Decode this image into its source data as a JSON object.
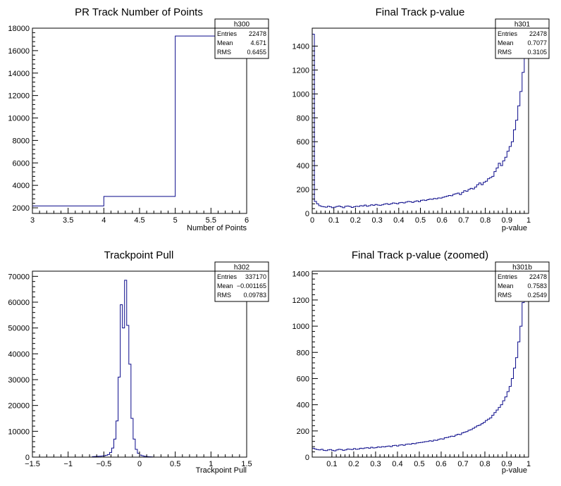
{
  "chart_data": [
    {
      "type": "histogram",
      "title": "PR Track Number of Points",
      "xlabel": "Number of Points",
      "ylabel": "",
      "xlim": [
        3,
        6
      ],
      "ylim": [
        1500,
        18000
      ],
      "x_ticks": [
        3,
        3.5,
        4,
        4.5,
        5,
        5.5,
        6
      ],
      "x_tick_labels": [
        "3",
        "3.5",
        "4",
        "4.5",
        "5",
        "5.5",
        "6"
      ],
      "y_ticks": [
        2000,
        4000,
        6000,
        8000,
        10000,
        12000,
        14000,
        16000,
        18000
      ],
      "y_tick_labels": [
        "2000",
        "4000",
        "6000",
        "8000",
        "10000",
        "12000",
        "14000",
        "16000",
        "18000"
      ],
      "bin_edges": [
        3,
        4,
        5,
        6
      ],
      "values": [
        2170,
        3010,
        17300
      ],
      "stats": {
        "name": "h300",
        "rows": [
          {
            "label": "Entries",
            "value": "22478"
          },
          {
            "label": "Mean",
            "value": "4.671"
          },
          {
            "label": "RMS",
            "value": "0.6455"
          }
        ]
      }
    },
    {
      "type": "histogram",
      "title": "Final Track p-value",
      "xlabel": "p-value",
      "ylabel": "",
      "xlim": [
        0,
        1
      ],
      "ylim": [
        0,
        1550
      ],
      "x_ticks": [
        0,
        0.1,
        0.2,
        0.3,
        0.4,
        0.5,
        0.6,
        0.7,
        0.8,
        0.9,
        1
      ],
      "x_tick_labels": [
        "0",
        "0.1",
        "0.2",
        "0.3",
        "0.4",
        "0.5",
        "0.6",
        "0.7",
        "0.8",
        "0.9",
        "1"
      ],
      "y_ticks": [
        0,
        200,
        400,
        600,
        800,
        1000,
        1200,
        1400
      ],
      "y_tick_labels": [
        "0",
        "200",
        "400",
        "600",
        "800",
        "1000",
        "1200",
        "1400"
      ],
      "bin_edges_range": [
        0,
        1
      ],
      "values": [
        1500,
        100,
        80,
        65,
        58,
        55,
        52,
        60,
        55,
        48,
        52,
        58,
        62,
        55,
        48,
        60,
        62,
        58,
        50,
        55,
        60,
        58,
        65,
        62,
        70,
        60,
        65,
        72,
        68,
        75,
        70,
        68,
        72,
        78,
        82,
        75,
        80,
        88,
        85,
        80,
        90,
        92,
        88,
        95,
        100,
        98,
        92,
        100,
        105,
        98,
        110,
        112,
        108,
        115,
        120,
        118,
        125,
        122,
        130,
        128,
        135,
        140,
        145,
        150,
        148,
        160,
        165,
        170,
        158,
        175,
        190,
        185,
        200,
        210,
        205,
        220,
        240,
        255,
        240,
        260,
        270,
        290,
        300,
        310,
        350,
        380,
        420,
        400,
        440,
        470,
        520,
        560,
        600,
        700,
        780,
        900,
        1020,
        1180,
        1350,
        1440
      ],
      "stats": {
        "name": "h301",
        "rows": [
          {
            "label": "Entries",
            "value": "22478"
          },
          {
            "label": "Mean",
            "value": "0.7077"
          },
          {
            "label": "RMS",
            "value": "0.3105"
          }
        ]
      }
    },
    {
      "type": "histogram",
      "title": "Trackpoint Pull",
      "xlabel": "Trackpoint Pull",
      "ylabel": "",
      "xlim": [
        -1.5,
        1.5
      ],
      "ylim": [
        0,
        72000
      ],
      "x_ticks": [
        -1.5,
        -1,
        -0.5,
        0,
        0.5,
        1,
        1.5
      ],
      "x_tick_labels": [
        "−1.5",
        "−1",
        "−0.5",
        "0",
        "0.5",
        "1",
        "1.5"
      ],
      "y_ticks": [
        0,
        10000,
        20000,
        30000,
        40000,
        50000,
        60000,
        70000
      ],
      "y_tick_labels": [
        "0",
        "10000",
        "20000",
        "30000",
        "40000",
        "50000",
        "60000",
        "70000"
      ],
      "bin_edges_range": [
        -1.5,
        1.5
      ],
      "values": [
        0,
        0,
        0,
        0,
        0,
        0,
        0,
        0,
        0,
        0,
        0,
        0,
        0,
        0,
        0,
        0,
        0,
        0,
        0,
        0,
        0,
        0,
        0,
        0,
        0,
        0,
        0,
        0,
        0,
        0,
        0,
        0,
        0,
        0,
        0,
        0,
        0,
        0,
        0,
        0,
        0,
        0,
        0,
        0,
        0,
        0,
        0,
        0,
        0,
        0,
        0,
        0,
        0,
        0,
        0,
        0,
        0,
        0,
        0,
        0,
        0,
        0,
        0,
        0,
        0,
        0,
        0,
        0,
        0,
        0,
        0,
        0,
        0,
        0,
        0,
        0,
        0,
        0,
        0,
        0,
        0,
        0,
        0,
        0,
        0,
        0,
        0,
        0,
        0,
        0,
        0,
        0,
        0,
        0,
        0,
        0,
        0,
        0,
        0,
        0,
        0,
        0,
        0,
        0,
        0,
        0,
        0,
        0,
        0,
        0,
        0,
        0,
        0,
        0,
        0,
        0,
        0,
        0,
        0,
        0,
        0,
        0,
        0,
        0,
        0,
        0,
        0,
        0,
        0,
        0,
        0,
        0,
        0,
        0,
        0,
        0,
        0,
        0,
        0,
        0,
        0,
        0,
        0,
        0,
        0,
        0,
        0,
        0,
        0,
        0,
        0,
        0,
        0,
        0,
        0,
        0,
        0,
        0,
        0,
        0,
        0,
        0,
        0,
        0,
        0,
        0,
        0,
        0,
        0,
        0,
        0,
        0,
        0,
        0,
        0,
        0,
        0,
        0,
        0,
        0,
        0,
        0,
        0,
        0,
        0,
        0,
        0,
        0,
        0,
        0,
        0,
        0,
        0,
        0,
        0,
        0,
        0,
        0,
        0,
        0,
        0,
        0,
        0,
        0,
        0,
        0,
        0,
        0,
        0,
        0,
        0,
        0,
        0,
        0,
        0,
        0,
        0,
        0,
        0,
        0,
        0,
        0,
        0,
        0,
        0,
        0,
        0,
        0,
        0,
        0,
        0,
        0,
        0,
        0,
        0,
        0,
        0,
        0,
        0,
        0,
        0,
        0,
        0,
        0,
        0,
        0,
        0,
        0,
        0,
        0,
        0,
        0,
        0,
        0,
        0,
        0,
        0,
        0,
        0,
        0,
        0,
        0,
        0,
        0,
        0,
        0,
        0,
        0,
        0,
        0,
        0,
        0,
        0,
        0,
        0,
        0,
        0,
        0,
        0,
        0,
        0,
        0,
        0,
        0,
        0,
        0,
        0,
        0,
        0,
        0,
        0,
        0,
        0,
        0
      ],
      "values_sparse": {
        "bins": 100,
        "nonzero": [
          [
            28,
            200
          ],
          [
            29,
            250
          ],
          [
            30,
            300
          ],
          [
            31,
            350
          ],
          [
            32,
            400
          ],
          [
            33,
            500
          ],
          [
            34,
            700
          ],
          [
            35,
            1000
          ],
          [
            36,
            1800
          ],
          [
            37,
            3500
          ],
          [
            38,
            7000
          ],
          [
            39,
            14000
          ],
          [
            40,
            31000
          ],
          [
            41,
            59000
          ],
          [
            42,
            50000
          ],
          [
            43,
            68500
          ],
          [
            44,
            51000
          ],
          [
            45,
            36000
          ],
          [
            46,
            15000
          ],
          [
            47,
            7000
          ],
          [
            48,
            3000
          ],
          [
            49,
            1500
          ],
          [
            50,
            800
          ],
          [
            51,
            500
          ],
          [
            52,
            300
          ],
          [
            53,
            200
          ],
          [
            54,
            150
          ],
          [
            55,
            100
          ]
        ]
      },
      "stats": {
        "name": "h302",
        "rows": [
          {
            "label": "Entries",
            "value": "337170"
          },
          {
            "label": "Mean",
            "value": "−0.001165"
          },
          {
            "label": "RMS",
            "value": "0.09783"
          }
        ]
      }
    },
    {
      "type": "histogram",
      "title": "Final Track p-value (zoomed)",
      "xlabel": "p-value",
      "ylabel": "",
      "xlim": [
        0.01,
        1
      ],
      "ylim": [
        0,
        1420
      ],
      "x_ticks": [
        0.1,
        0.2,
        0.3,
        0.4,
        0.5,
        0.6,
        0.7,
        0.8,
        0.9,
        1
      ],
      "x_tick_labels": [
        "0.1",
        "0.2",
        "0.3",
        "0.4",
        "0.5",
        "0.6",
        "0.7",
        "0.8",
        "0.9",
        "1"
      ],
      "y_ticks": [
        0,
        200,
        400,
        600,
        800,
        1000,
        1200,
        1400
      ],
      "y_tick_labels": [
        "0",
        "200",
        "400",
        "600",
        "800",
        "1000",
        "1200",
        "1400"
      ],
      "bin_edges_range": [
        0.01,
        1
      ],
      "values": [
        68,
        62,
        58,
        55,
        60,
        52,
        50,
        55,
        58,
        52,
        48,
        55,
        60,
        58,
        52,
        55,
        62,
        60,
        58,
        65,
        60,
        62,
        68,
        65,
        70,
        72,
        68,
        75,
        70,
        72,
        78,
        75,
        80,
        78,
        82,
        85,
        80,
        88,
        90,
        85,
        92,
        95,
        90,
        98,
        100,
        98,
        105,
        102,
        108,
        110,
        112,
        115,
        118,
        120,
        125,
        122,
        130,
        128,
        135,
        140,
        138,
        148,
        150,
        155,
        160,
        158,
        168,
        175,
        172,
        185,
        190,
        195,
        205,
        210,
        220,
        230,
        240,
        245,
        255,
        265,
        280,
        290,
        300,
        320,
        340,
        360,
        380,
        400,
        430,
        460,
        500,
        540,
        600,
        680,
        760,
        880,
        1000,
        1180,
        1350,
        1400
      ],
      "stats": {
        "name": "h301b",
        "rows": [
          {
            "label": "Entries",
            "value": "22478"
          },
          {
            "label": "Mean",
            "value": "0.7583"
          },
          {
            "label": "RMS",
            "value": "0.2549"
          }
        ]
      }
    }
  ]
}
